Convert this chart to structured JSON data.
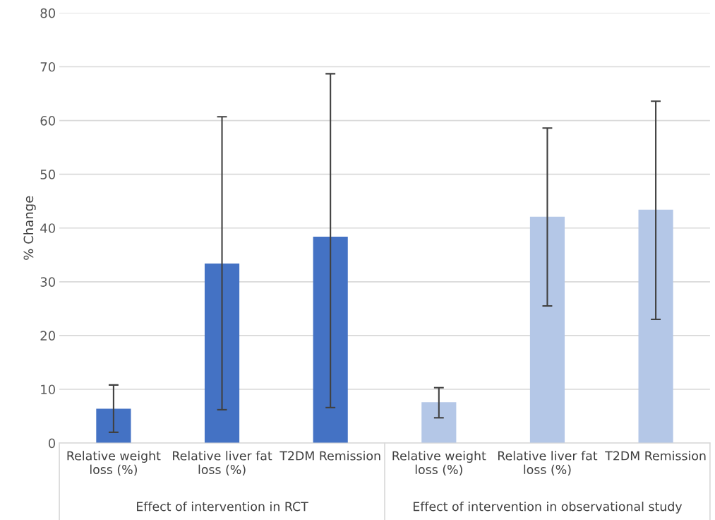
{
  "chart_data": {
    "type": "bar",
    "ylabel": "% Change",
    "categories": [
      "Relative weight\nloss (%)",
      "Relative liver fat\nloss (%)",
      "T2DM Remission",
      "Relative weight\nloss (%)",
      "Relative liver fat\nloss (%)",
      "T2DM Remission"
    ],
    "values": [
      6.4,
      33.4,
      38.4,
      7.6,
      42.1,
      43.4
    ],
    "colors": [
      "#4472c4",
      "#4472c4",
      "#4472c4",
      "#b4c7e7",
      "#b4c7e7",
      "#b4c7e7"
    ],
    "errors": [
      [
        2.0,
        10.8
      ],
      [
        6.2,
        60.7
      ],
      [
        6.6,
        68.7
      ],
      [
        4.7,
        10.3
      ],
      [
        25.5,
        58.6
      ],
      [
        23.0,
        63.6
      ]
    ],
    "ylim": [
      0,
      80
    ],
    "yticks": [
      0,
      10,
      20,
      30,
      40,
      50,
      60,
      70,
      80
    ],
    "grid": "y",
    "annotations": [
      "Effect of intervention in RCT",
      "Effect of intervention in observational study"
    ]
  }
}
